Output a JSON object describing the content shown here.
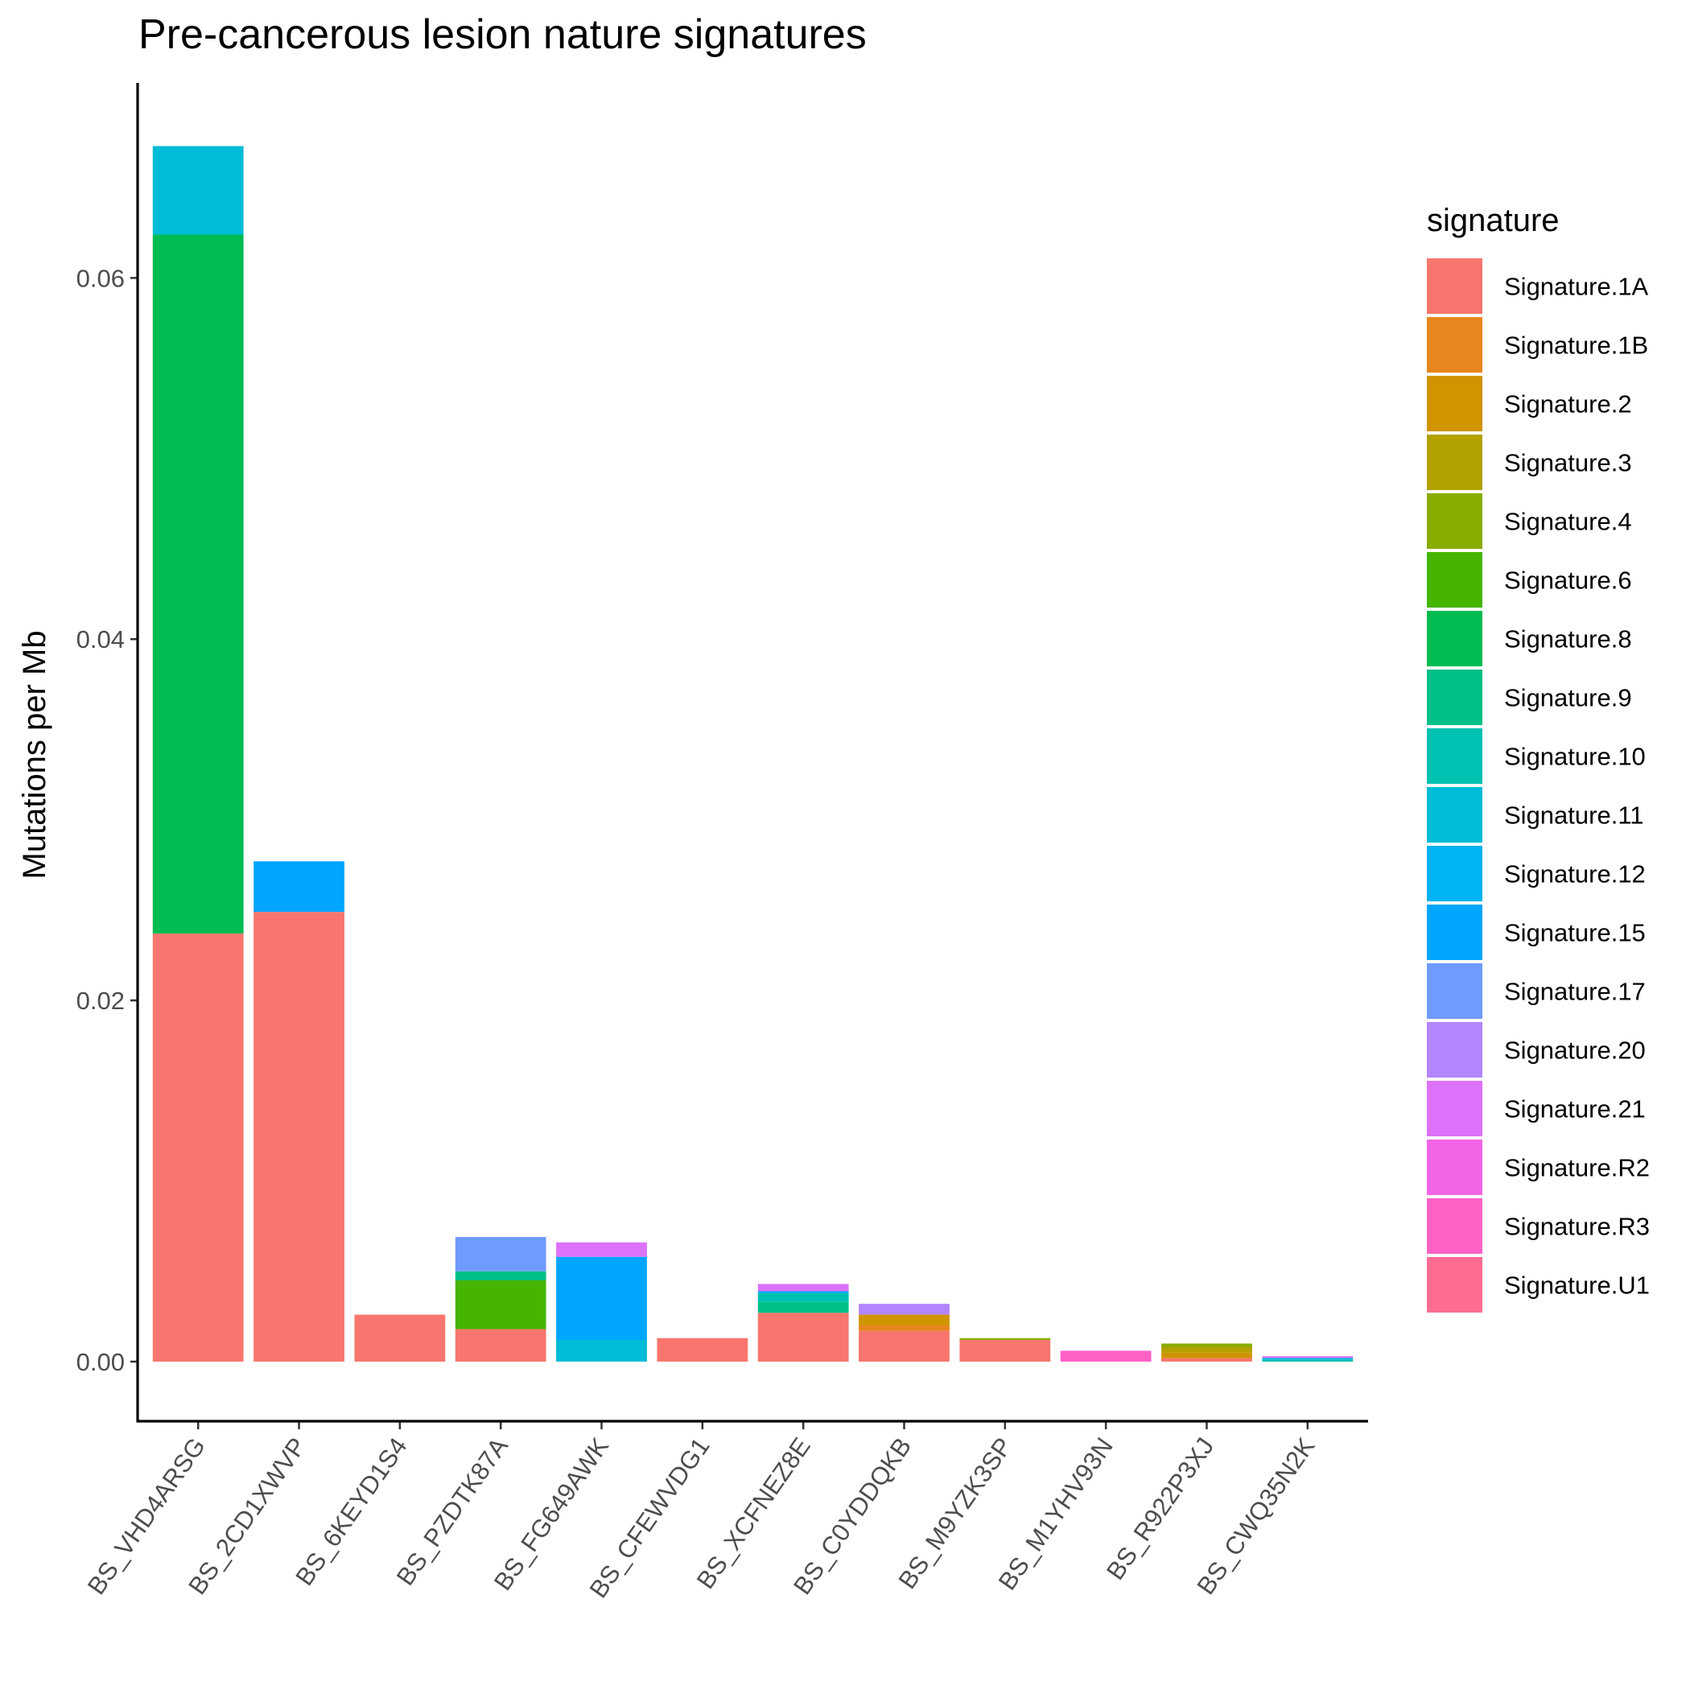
{
  "chart_data": {
    "type": "bar",
    "stacked": true,
    "title": "Pre-cancerous lesion nature signatures",
    "xlabel": "",
    "ylabel": "Mutations per Mb",
    "ylim": [
      -0.0033,
      0.0708
    ],
    "yticks": [
      0.0,
      0.02,
      0.04,
      0.06
    ],
    "ytick_labels": [
      "0.00",
      "0.02",
      "0.04",
      "0.06"
    ],
    "grid": false,
    "legend_title": "signature",
    "legend_position": "right",
    "categories": [
      "BS_VHD4ARSG",
      "BS_2CD1XWVP",
      "BS_6KEYD1S4",
      "BS_PZDTK87A",
      "BS_FG649AWK",
      "BS_CFEWVDG1",
      "BS_XCFNEZ8E",
      "BS_C0YDDQKB",
      "BS_M9YZK3SP",
      "BS_M1YHV93N",
      "BS_R922P3XJ",
      "BS_CWQ35N2K"
    ],
    "series": [
      {
        "name": "Signature.1A",
        "color": "#F8766D",
        "values": [
          0.0237,
          0.0249,
          0.0026,
          0.0018,
          0.0,
          0.0013,
          0.0027,
          0.0017,
          0.0012,
          0.0,
          0.0002,
          0.0
        ]
      },
      {
        "name": "Signature.1B",
        "color": "#E7851E",
        "values": [
          0,
          0,
          0,
          0,
          0,
          0,
          0,
          0.0003,
          0,
          0,
          0,
          0
        ]
      },
      {
        "name": "Signature.2",
        "color": "#D09400",
        "values": [
          0,
          0,
          0,
          0,
          0,
          0,
          0,
          0.0006,
          0,
          0,
          0.0003,
          0
        ]
      },
      {
        "name": "Signature.3",
        "color": "#B2A100",
        "values": [
          0,
          0,
          0,
          0,
          0,
          0,
          0,
          0,
          0,
          0,
          0.0003,
          0
        ]
      },
      {
        "name": "Signature.4",
        "color": "#89AC00",
        "values": [
          0,
          0,
          0,
          0,
          0,
          0,
          0,
          0,
          0.0001,
          0,
          0.0002,
          0
        ]
      },
      {
        "name": "Signature.6",
        "color": "#45B500",
        "values": [
          0,
          0,
          0,
          0.0027,
          0,
          0,
          0,
          0,
          0,
          0,
          0,
          0
        ]
      },
      {
        "name": "Signature.8",
        "color": "#00BC51",
        "values": [
          0.0387,
          0,
          0,
          0,
          0,
          0,
          0,
          0,
          0,
          0,
          0,
          0
        ]
      },
      {
        "name": "Signature.9",
        "color": "#00C087",
        "values": [
          0,
          0,
          0,
          0.0005,
          0,
          0,
          0.0006,
          0,
          0,
          0,
          0,
          0
        ]
      },
      {
        "name": "Signature.10",
        "color": "#00C0B2",
        "values": [
          0,
          0,
          0,
          0,
          0,
          0,
          0.0005,
          0,
          0,
          0,
          0,
          0.0001
        ]
      },
      {
        "name": "Signature.11",
        "color": "#00BCD6",
        "values": [
          0.0049,
          0,
          0,
          0,
          0.0012,
          0,
          0,
          0,
          0,
          0,
          0,
          0.0001
        ]
      },
      {
        "name": "Signature.12",
        "color": "#00B3F2",
        "values": [
          0,
          0,
          0,
          0,
          0,
          0,
          0,
          0,
          0,
          0,
          0,
          0
        ]
      },
      {
        "name": "Signature.15",
        "color": "#00A6FF",
        "values": [
          0,
          0.0028,
          0,
          0,
          0.0046,
          0,
          0.0001,
          0,
          0,
          0,
          0,
          0
        ]
      },
      {
        "name": "Signature.17",
        "color": "#6F9BFF",
        "values": [
          0,
          0,
          0,
          0.0019,
          0,
          0,
          0,
          0,
          0,
          0,
          0,
          0
        ]
      },
      {
        "name": "Signature.20",
        "color": "#B385FF",
        "values": [
          0,
          0,
          0,
          0,
          0,
          0,
          0,
          0.0006,
          0,
          0,
          0,
          0
        ]
      },
      {
        "name": "Signature.21",
        "color": "#DC71FA",
        "values": [
          0,
          0,
          0,
          0,
          0.0008,
          0,
          0.0004,
          0,
          0,
          0,
          0,
          0.0001
        ]
      },
      {
        "name": "Signature.R2",
        "color": "#F265E7",
        "values": [
          0,
          0,
          0,
          0,
          0,
          0,
          0,
          0,
          0,
          0,
          0,
          0
        ]
      },
      {
        "name": "Signature.R3",
        "color": "#FF61C7",
        "values": [
          0,
          0,
          0,
          0,
          0,
          0,
          0,
          0,
          0,
          0.0006,
          0,
          0
        ]
      },
      {
        "name": "Signature.U1",
        "color": "#FF6C92",
        "values": [
          0,
          0,
          0,
          0,
          0,
          0,
          0,
          0,
          0,
          0,
          0,
          0
        ]
      }
    ]
  }
}
